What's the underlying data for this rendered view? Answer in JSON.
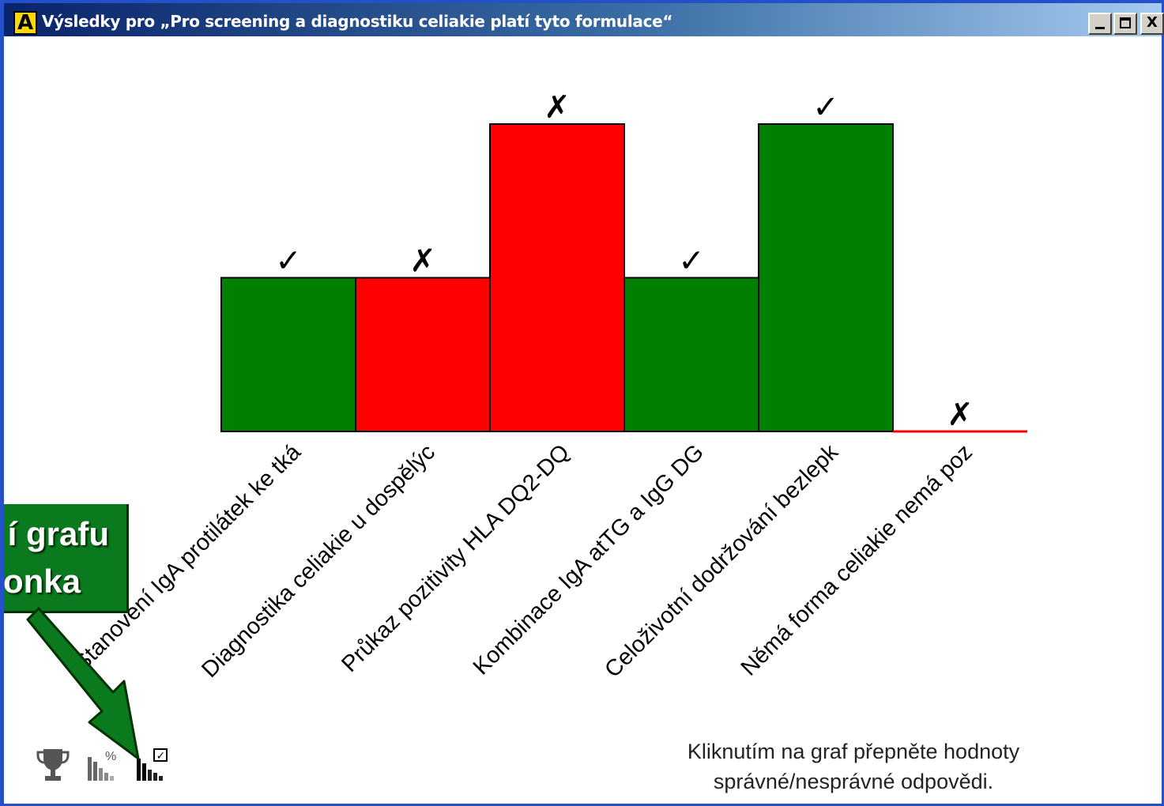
{
  "window": {
    "app_icon_letter": "A",
    "title": "Výsledky pro „Pro screening a diagnostiku celiakie platí tyto formulace“",
    "close_label": "X"
  },
  "overlay": {
    "line1": "í grafu",
    "line2": "onka"
  },
  "hint": {
    "line1": "Kliknutím na graf přepněte hodnoty",
    "line2": "správné/nesprávné odpovědi."
  },
  "toolbar": {
    "icons": [
      "trophy-icon",
      "percent-chart-icon",
      "check-chart-icon"
    ],
    "percent_glyph": "%",
    "check_glyph": "✓"
  },
  "colors": {
    "correct": "#008000",
    "incorrect": "#ff0000"
  },
  "chart_data": {
    "type": "bar",
    "categories": [
      "Stanovení IgA protilátek ke tká",
      "Diagnostika celiakie u dospělýc",
      "Průkaz pozitivity HLA DQ2-DQ",
      "Kombinace IgA atTG a IgG DG",
      "Celoživotní dodržování bezlepk",
      "Němá forma celiakie nemá poz"
    ],
    "values": [
      1,
      1,
      2,
      1,
      2,
      0
    ],
    "marks": [
      "✓",
      "✗",
      "✗",
      "✓",
      "✓",
      "✗"
    ],
    "status": [
      "correct",
      "incorrect",
      "incorrect",
      "correct",
      "correct",
      "incorrect"
    ],
    "ylim": [
      0,
      2
    ],
    "grid": false,
    "legend": "none"
  }
}
